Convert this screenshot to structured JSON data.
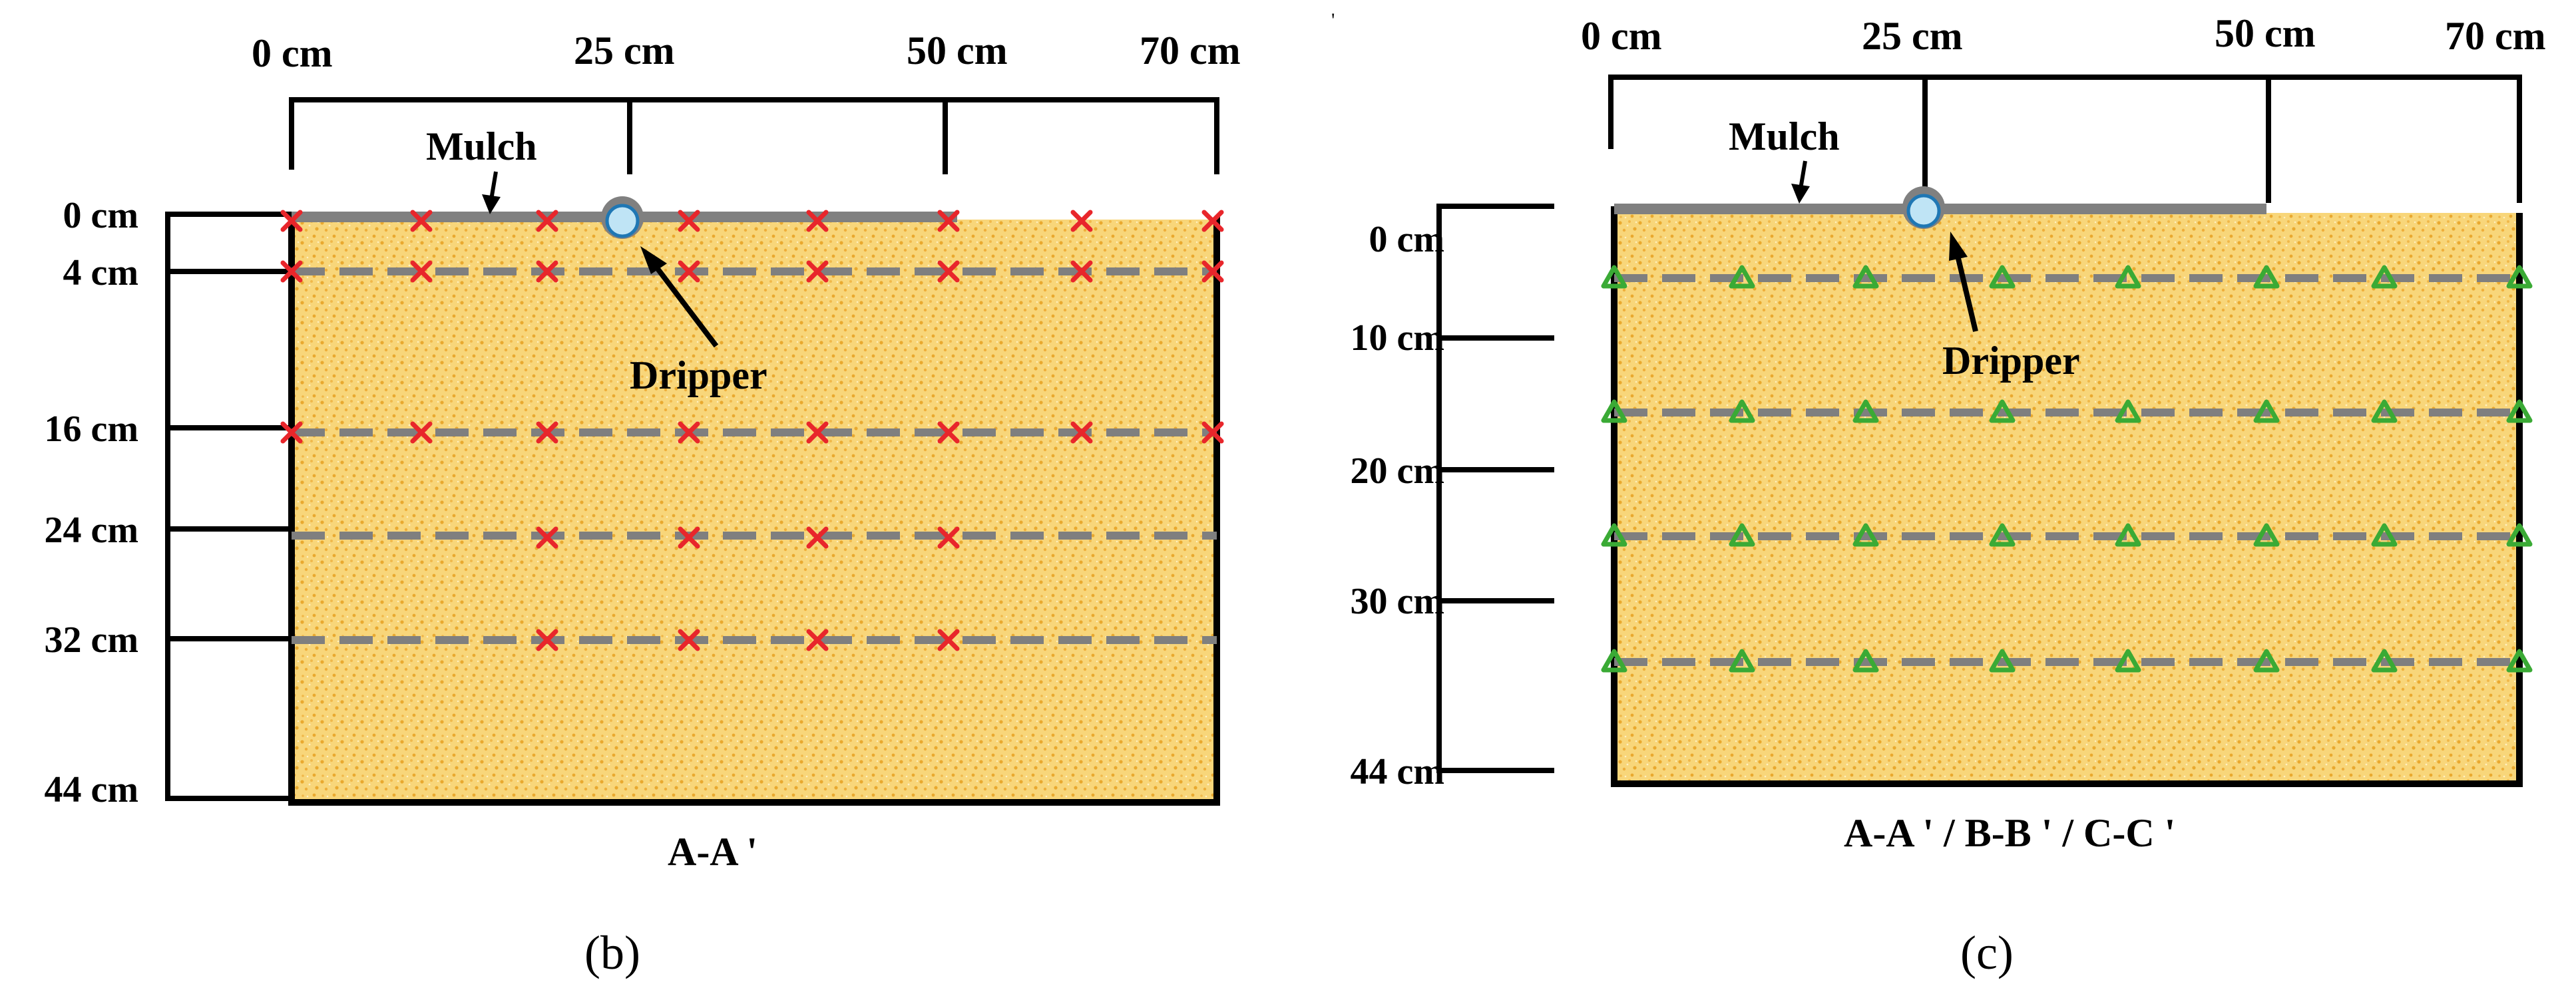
{
  "panel_b": {
    "top_labels": [
      "0 cm",
      "25 cm",
      "50 cm",
      "70 cm"
    ],
    "depth_labels": [
      "0 cm",
      "4 cm",
      "16 cm",
      "24 cm",
      "32 cm",
      "44 cm"
    ],
    "mulch_label": "Mulch",
    "dripper_label": "Dripper",
    "section_label": "A-A '",
    "caption": "(b)",
    "marker_shape": "x-cross",
    "marker_color": "#e8262b"
  },
  "panel_c": {
    "top_labels": [
      "0 cm",
      "25 cm",
      "50 cm",
      "70 cm"
    ],
    "depth_labels": [
      "0 cm",
      "10 cm",
      "20 cm",
      "30 cm",
      "44 cm"
    ],
    "mulch_label": "Mulch",
    "dripper_label": "Dripper",
    "section_label": "A-A ' / B-B ' / C-C '",
    "caption": "(c)",
    "marker_shape": "triangle",
    "marker_color": "#3aaa35"
  },
  "colors": {
    "soil": "#f8d67a",
    "soil_speckle": "#e9a92f",
    "mulch": "#808080",
    "dashed_line": "#7f7f7f",
    "dripper_fill": "#bfe4f5",
    "dripper_stroke": "#1f77b4"
  }
}
